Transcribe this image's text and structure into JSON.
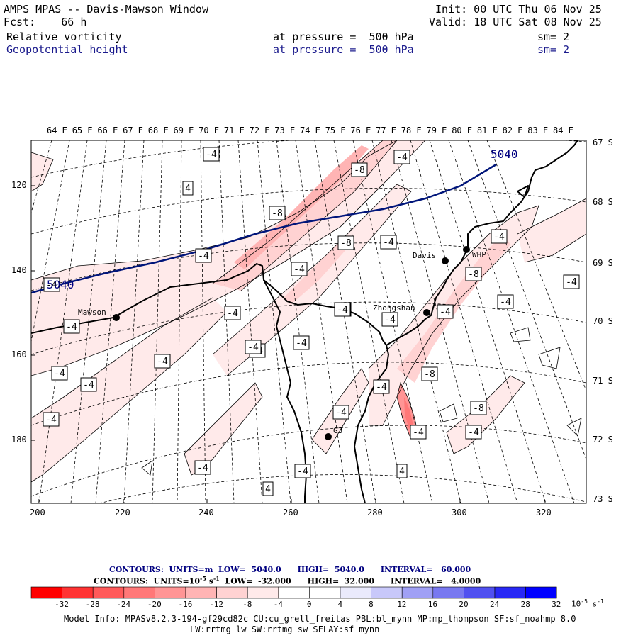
{
  "header": {
    "title": "AMPS MPAS -- Davis-Mawson Window",
    "init": "Init: 00 UTC Thu 06 Nov 25",
    "fcst": "Fcst:    66 h",
    "valid": "Valid: 18 UTC Sat 08 Nov 25",
    "field1": {
      "name": "Relative vorticity",
      "level": "at pressure =  500 hPa",
      "sm": "sm= 2"
    },
    "field2": {
      "name": "Geopotential height",
      "level": "at pressure =  500 hPa",
      "sm": "sm= 2"
    }
  },
  "map": {
    "top_lon_labels": [
      "64 E",
      "65 E",
      "66 E",
      "67 E",
      "68 E",
      "69 E",
      "70 E",
      "71 E",
      "72 E",
      "73 E",
      "74 E",
      "75 E",
      "76 E",
      "77 E",
      "78 E",
      "79 E",
      "80 E",
      "81 E",
      "82 E",
      "83 E",
      "84 E"
    ],
    "right_lat_labels": [
      "67 S",
      "68 S",
      "69 S",
      "70 S",
      "71 S",
      "72 S",
      "73 S"
    ],
    "left_y_ticks": [
      "120",
      "140",
      "160",
      "180"
    ],
    "bottom_x_ticks": [
      "200",
      "220",
      "240",
      "260",
      "280",
      "300",
      "320"
    ],
    "stations": [
      {
        "name": "Mawson"
      },
      {
        "name": "Davis"
      },
      {
        "name": "WHP"
      },
      {
        "name": "Zhongshan"
      },
      {
        "name": "G3"
      }
    ],
    "height_contour_labels": [
      "5040",
      "5040"
    ],
    "vorticity_labels": [
      "-4",
      "-4",
      "4",
      "-8",
      "-4",
      "-8",
      "-4",
      "-4",
      "-8",
      "-4",
      "-4",
      "-4",
      "-4",
      "-4",
      "-4",
      "-8",
      "-4",
      "-4",
      "-4",
      "-4",
      "-4",
      "-4",
      "-4",
      "-8",
      "-4",
      "-4",
      "-4",
      "-4",
      "-4",
      "4",
      "-4",
      "-4",
      "-8",
      "-4",
      "4",
      "-4",
      "-4"
    ]
  },
  "legend": {
    "contours1": "CONTOURS:  UNITS=m  LOW=  5040.0      HIGH=  5040.0      INTERVAL=   60.000",
    "contours2_pre": "CONTOURS:  UNITS=10",
    "contours2_exp": "-5",
    "contours2_mid": " s",
    "contours2_exp2": "-1",
    "contours2_post": "  LOW=  -32.000      HIGH=  32.000      INTERVAL=   4.0000",
    "colorbar_labels": [
      "-32",
      "-28",
      "-24",
      "-20",
      "-16",
      "-12",
      "-8",
      "-4",
      "0",
      "4",
      "8",
      "12",
      "16",
      "20",
      "24",
      "28",
      "32"
    ],
    "colorbar_unit": "10",
    "colorbar_unit_exp": "-5",
    "colorbar_unit_s": "s",
    "colorbar_unit_exp2": "-1",
    "colors": [
      "#ff0000",
      "#ff3333",
      "#ff5a5a",
      "#ff7878",
      "#ff9595",
      "#ffb4b4",
      "#ffd2d2",
      "#ffeaea",
      "#ffffff",
      "#ffffff",
      "#eaeafc",
      "#c8c8fa",
      "#a0a0f5",
      "#7878f0",
      "#5050f0",
      "#2828f5",
      "#0000ff"
    ]
  },
  "model_info": {
    "line1": "Model Info: MPASv8.2.3-194-gf29cd82c CU:cu_grell_freitas PBL:bl_mynn MP:mp_thompson SF:sf_noahmp 8.0",
    "line2": "LW:rrtmg_lw SW:rrtmg_sw SFLAY:sf_mynn"
  }
}
